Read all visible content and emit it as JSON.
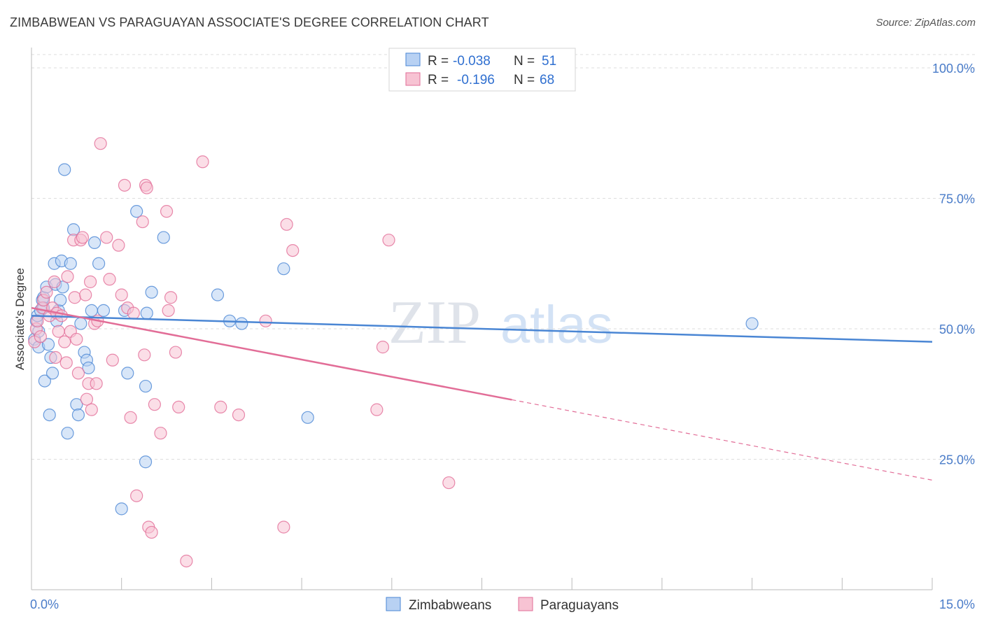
{
  "title": "ZIMBABWEAN VS PARAGUAYAN ASSOCIATE'S DEGREE CORRELATION CHART",
  "source": "Source: ZipAtlas.com",
  "watermark": {
    "zip": "ZIP",
    "atlas": "atlas"
  },
  "legend": {
    "rows": [
      {
        "r_label": "R =",
        "r_value": "-0.038",
        "n_label": "N =",
        "n_value": "51"
      },
      {
        "r_label": "R =",
        "r_value": "-0.196",
        "n_label": "N =",
        "n_value": "68"
      }
    ]
  },
  "chart_data": {
    "type": "scatter",
    "title": "ZIMBABWEAN VS PARAGUAYAN ASSOCIATE'S DEGREE CORRELATION CHART",
    "xlabel": "",
    "ylabel": "Associate's Degree",
    "xlim": [
      0,
      15
    ],
    "ylim": [
      0,
      100
    ],
    "x_tick_labels": [
      "0.0%",
      "15.0%"
    ],
    "y_tick_labels": [
      "100.0%",
      "75.0%",
      "50.0%",
      "25.0%"
    ],
    "y_ticks": [
      100,
      75,
      50,
      25
    ],
    "grid": true,
    "colors": {
      "blue": "#4a86d4",
      "pink": "#e26d97",
      "blue_fill": "#b8d1f3",
      "pink_fill": "#f7c3d3"
    },
    "series": [
      {
        "name": "Zimbabweans",
        "r": -0.038,
        "n": 51,
        "trend": {
          "x0": 0,
          "y0": 52.5,
          "x1": 15,
          "y1": 47.5,
          "solid_until": 15
        },
        "points": [
          [
            0.05,
            48.0
          ],
          [
            0.08,
            51.5
          ],
          [
            0.1,
            52.5
          ],
          [
            0.12,
            46.5
          ],
          [
            0.15,
            53.5
          ],
          [
            0.18,
            55.5
          ],
          [
            0.2,
            56.0
          ],
          [
            0.22,
            40.0
          ],
          [
            0.25,
            58.0
          ],
          [
            0.28,
            47.0
          ],
          [
            0.3,
            33.5
          ],
          [
            0.32,
            44.5
          ],
          [
            0.35,
            41.5
          ],
          [
            0.38,
            62.5
          ],
          [
            0.4,
            58.5
          ],
          [
            0.42,
            51.5
          ],
          [
            0.45,
            53.5
          ],
          [
            0.48,
            55.5
          ],
          [
            0.5,
            63.0
          ],
          [
            0.52,
            58.0
          ],
          [
            0.55,
            80.5
          ],
          [
            0.6,
            30.0
          ],
          [
            0.65,
            62.5
          ],
          [
            0.7,
            69.0
          ],
          [
            0.75,
            35.5
          ],
          [
            0.78,
            33.5
          ],
          [
            0.82,
            51.0
          ],
          [
            0.88,
            45.5
          ],
          [
            0.92,
            44.0
          ],
          [
            0.95,
            42.5
          ],
          [
            1.0,
            53.5
          ],
          [
            1.05,
            66.5
          ],
          [
            1.12,
            62.5
          ],
          [
            1.2,
            53.5
          ],
          [
            1.5,
            15.5
          ],
          [
            1.55,
            53.5
          ],
          [
            1.6,
            41.5
          ],
          [
            1.75,
            72.5
          ],
          [
            1.9,
            39.0
          ],
          [
            1.92,
            53.0
          ],
          [
            1.9,
            24.5
          ],
          [
            2.0,
            57.0
          ],
          [
            2.2,
            67.5
          ],
          [
            3.1,
            56.5
          ],
          [
            3.3,
            51.5
          ],
          [
            3.5,
            51.0
          ],
          [
            4.2,
            61.5
          ],
          [
            4.6,
            33.0
          ],
          [
            12.0,
            51.0
          ],
          [
            0.12,
            49.5
          ],
          [
            0.2,
            54.0
          ]
        ]
      },
      {
        "name": "Paraguayans",
        "r": -0.196,
        "n": 68,
        "trend": {
          "x0": 0,
          "y0": 54.0,
          "x1": 15,
          "y1": 21.0,
          "solid_until": 8.0
        },
        "points": [
          [
            0.05,
            47.5
          ],
          [
            0.08,
            50.0
          ],
          [
            0.1,
            51.5
          ],
          [
            0.15,
            48.5
          ],
          [
            0.18,
            54.0
          ],
          [
            0.2,
            55.5
          ],
          [
            0.25,
            57.0
          ],
          [
            0.3,
            52.5
          ],
          [
            0.35,
            54.0
          ],
          [
            0.38,
            59.0
          ],
          [
            0.4,
            44.5
          ],
          [
            0.42,
            53.0
          ],
          [
            0.45,
            49.5
          ],
          [
            0.5,
            52.5
          ],
          [
            0.55,
            47.5
          ],
          [
            0.58,
            43.5
          ],
          [
            0.6,
            60.0
          ],
          [
            0.65,
            49.5
          ],
          [
            0.7,
            67.0
          ],
          [
            0.72,
            56.0
          ],
          [
            0.75,
            48.0
          ],
          [
            0.78,
            41.5
          ],
          [
            0.82,
            67.0
          ],
          [
            0.85,
            67.5
          ],
          [
            0.9,
            56.5
          ],
          [
            0.92,
            36.5
          ],
          [
            0.95,
            39.5
          ],
          [
            0.98,
            59.0
          ],
          [
            1.0,
            34.5
          ],
          [
            1.05,
            51.0
          ],
          [
            1.08,
            39.5
          ],
          [
            1.1,
            51.5
          ],
          [
            1.15,
            85.5
          ],
          [
            1.25,
            67.5
          ],
          [
            1.3,
            59.5
          ],
          [
            1.35,
            44.0
          ],
          [
            1.45,
            66.0
          ],
          [
            1.5,
            56.5
          ],
          [
            1.55,
            77.5
          ],
          [
            1.6,
            54.0
          ],
          [
            1.65,
            33.0
          ],
          [
            1.7,
            53.0
          ],
          [
            1.75,
            18.0
          ],
          [
            1.85,
            70.5
          ],
          [
            1.88,
            45.0
          ],
          [
            1.9,
            77.5
          ],
          [
            1.92,
            77.0
          ],
          [
            1.95,
            12.0
          ],
          [
            2.0,
            11.0
          ],
          [
            2.05,
            35.5
          ],
          [
            2.15,
            30.0
          ],
          [
            2.25,
            72.5
          ],
          [
            2.28,
            53.5
          ],
          [
            2.32,
            56.0
          ],
          [
            2.4,
            45.5
          ],
          [
            2.45,
            35.0
          ],
          [
            2.58,
            5.5
          ],
          [
            2.85,
            82.0
          ],
          [
            3.15,
            35.0
          ],
          [
            3.45,
            33.5
          ],
          [
            3.9,
            51.5
          ],
          [
            4.2,
            12.0
          ],
          [
            4.25,
            70.0
          ],
          [
            4.35,
            65.0
          ],
          [
            5.75,
            34.5
          ],
          [
            5.85,
            46.5
          ],
          [
            5.95,
            67.0
          ],
          [
            6.95,
            20.5
          ]
        ]
      }
    ]
  }
}
